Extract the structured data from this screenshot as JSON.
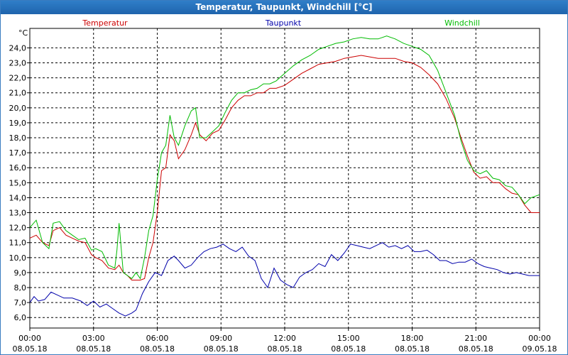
{
  "chart_data": {
    "type": "line",
    "title": "Temperatur, Taupunkt, Windchill [°C]",
    "ylabel": "°C",
    "xlabel": "",
    "ylim": [
      5.3,
      25.3
    ],
    "xlim": [
      0,
      24
    ],
    "yticks": [
      6.0,
      7.0,
      8.0,
      9.0,
      10.0,
      11.0,
      12.0,
      13.0,
      14.0,
      15.0,
      16.0,
      17.0,
      18.0,
      19.0,
      20.0,
      21.0,
      22.0,
      23.0,
      24.0
    ],
    "ytick_labels": [
      "6,0",
      "7,0",
      "8,0",
      "9,0",
      "10,0",
      "11,0",
      "12,0",
      "13,0",
      "14,0",
      "15,0",
      "16,0",
      "17,0",
      "18,0",
      "19,0",
      "20,0",
      "21,0",
      "22,0",
      "23,0",
      "24,0"
    ],
    "xticks": [
      0,
      3,
      6,
      9,
      12,
      15,
      18,
      21,
      24
    ],
    "xtick_times": [
      "00:00",
      "03:00",
      "06:00",
      "09:00",
      "12:00",
      "15:00",
      "18:00",
      "21:00",
      "00:00"
    ],
    "xtick_dates": [
      "08.05.18",
      "08.05.18",
      "08.05.18",
      "08.05.18",
      "08.05.18",
      "08.05.18",
      "08.05.18",
      "08.05.18",
      "09.05.18"
    ],
    "grid": true,
    "series": [
      {
        "name": "Temperatur",
        "color": "#cc0000",
        "x": [
          0,
          0.3,
          0.6,
          0.9,
          1.1,
          1.4,
          1.7,
          2.0,
          2.3,
          2.6,
          2.9,
          3.1,
          3.4,
          3.7,
          4.0,
          4.2,
          4.4,
          4.6,
          4.8,
          5.0,
          5.2,
          5.4,
          5.6,
          5.8,
          6.0,
          6.2,
          6.4,
          6.6,
          6.8,
          7.0,
          7.3,
          7.6,
          7.8,
          8.0,
          8.3,
          8.6,
          8.9,
          9.2,
          9.5,
          9.8,
          10.1,
          10.4,
          10.7,
          11.0,
          11.3,
          11.6,
          12.0,
          12.4,
          12.8,
          13.2,
          13.6,
          14.0,
          14.4,
          14.8,
          15.2,
          15.6,
          16.0,
          16.4,
          16.8,
          17.2,
          17.6,
          18.0,
          18.4,
          18.8,
          19.2,
          19.6,
          20.0,
          20.3,
          20.6,
          20.9,
          21.2,
          21.5,
          21.8,
          22.1,
          22.4,
          22.7,
          23.0,
          23.3,
          23.6,
          24.0
        ],
        "values": [
          11.3,
          11.5,
          11.0,
          10.8,
          11.8,
          12.0,
          11.5,
          11.3,
          11.1,
          11.0,
          10.2,
          10.0,
          9.8,
          9.3,
          9.2,
          9.5,
          9.0,
          8.8,
          8.5,
          8.5,
          8.5,
          8.6,
          10.0,
          11.0,
          13.0,
          15.8,
          16.0,
          18.2,
          17.8,
          16.6,
          17.2,
          18.2,
          19.0,
          18.2,
          17.8,
          18.3,
          18.5,
          19.2,
          20.0,
          20.5,
          20.8,
          20.8,
          21.0,
          21.0,
          21.3,
          21.3,
          21.5,
          21.9,
          22.3,
          22.6,
          22.9,
          23.0,
          23.1,
          23.3,
          23.4,
          23.5,
          23.4,
          23.3,
          23.3,
          23.3,
          23.1,
          23.0,
          22.7,
          22.2,
          21.6,
          20.6,
          19.3,
          18.0,
          16.8,
          15.7,
          15.3,
          15.4,
          15.0,
          15.0,
          14.6,
          14.3,
          14.2,
          13.5,
          13.0,
          13.0
        ]
      },
      {
        "name": "Taupunkt",
        "color": "#0000aa",
        "x": [
          0,
          0.2,
          0.4,
          0.7,
          1.0,
          1.3,
          1.6,
          2.0,
          2.4,
          2.7,
          3.0,
          3.3,
          3.6,
          3.9,
          4.2,
          4.5,
          4.8,
          5.0,
          5.3,
          5.6,
          5.9,
          6.2,
          6.5,
          6.8,
          7.0,
          7.3,
          7.6,
          7.9,
          8.2,
          8.5,
          8.8,
          9.1,
          9.4,
          9.7,
          10.0,
          10.3,
          10.6,
          10.9,
          11.2,
          11.5,
          11.8,
          12.1,
          12.4,
          12.7,
          13.0,
          13.3,
          13.6,
          13.9,
          14.2,
          14.5,
          14.8,
          15.1,
          15.4,
          15.7,
          16.0,
          16.3,
          16.6,
          16.9,
          17.2,
          17.5,
          17.8,
          18.1,
          18.4,
          18.7,
          19.0,
          19.3,
          19.6,
          19.9,
          20.2,
          20.5,
          20.8,
          21.1,
          21.4,
          21.7,
          22.0,
          22.3,
          22.6,
          22.9,
          23.2,
          23.5,
          24.0
        ],
        "values": [
          7.0,
          7.4,
          7.1,
          7.2,
          7.7,
          7.5,
          7.3,
          7.3,
          7.1,
          6.8,
          7.1,
          6.7,
          6.9,
          6.6,
          6.3,
          6.1,
          6.3,
          6.5,
          7.6,
          8.4,
          9.0,
          8.8,
          9.8,
          10.1,
          9.8,
          9.3,
          9.5,
          10.0,
          10.4,
          10.6,
          10.7,
          10.9,
          10.6,
          10.4,
          10.7,
          10.1,
          9.8,
          8.6,
          8.0,
          9.3,
          8.5,
          8.2,
          8.0,
          8.7,
          9.0,
          9.2,
          9.6,
          9.4,
          10.2,
          9.8,
          10.3,
          10.9,
          10.8,
          10.7,
          10.6,
          10.8,
          11.0,
          10.7,
          10.8,
          10.6,
          10.8,
          10.4,
          10.4,
          10.5,
          10.2,
          9.8,
          9.8,
          9.6,
          9.7,
          9.7,
          9.9,
          9.6,
          9.4,
          9.3,
          9.2,
          9.0,
          8.9,
          9.0,
          8.9,
          8.8,
          8.8
        ]
      },
      {
        "name": "Windchill",
        "color": "#00bb00",
        "x": [
          0,
          0.3,
          0.6,
          0.9,
          1.1,
          1.4,
          1.7,
          2.0,
          2.3,
          2.6,
          2.9,
          3.1,
          3.4,
          3.7,
          4.0,
          4.1,
          4.2,
          4.4,
          4.6,
          4.8,
          5.0,
          5.2,
          5.4,
          5.6,
          5.8,
          6.0,
          6.2,
          6.4,
          6.6,
          6.8,
          7.0,
          7.3,
          7.6,
          7.8,
          8.0,
          8.3,
          8.6,
          8.9,
          9.2,
          9.5,
          9.8,
          10.1,
          10.4,
          10.7,
          11.0,
          11.3,
          11.6,
          12.0,
          12.4,
          12.8,
          13.2,
          13.6,
          14.0,
          14.4,
          14.8,
          15.2,
          15.6,
          16.0,
          16.4,
          16.8,
          17.2,
          17.6,
          18.0,
          18.4,
          18.8,
          19.2,
          19.6,
          20.0,
          20.3,
          20.6,
          20.9,
          21.2,
          21.5,
          21.8,
          22.1,
          22.4,
          22.7,
          23.0,
          23.3,
          23.6,
          24.0
        ],
        "values": [
          12.0,
          12.5,
          11.0,
          10.6,
          12.3,
          12.4,
          11.8,
          11.5,
          11.2,
          11.3,
          10.5,
          10.6,
          10.4,
          9.5,
          9.3,
          10.5,
          12.3,
          9.0,
          8.8,
          8.6,
          9.0,
          8.6,
          10.0,
          11.8,
          12.8,
          15.2,
          17.0,
          17.5,
          19.5,
          18.0,
          17.5,
          18.8,
          19.8,
          20.0,
          18.0,
          18.0,
          18.4,
          18.8,
          19.7,
          20.5,
          21.0,
          21.0,
          21.2,
          21.3,
          21.6,
          21.6,
          21.8,
          22.3,
          22.8,
          23.2,
          23.5,
          23.9,
          24.1,
          24.3,
          24.4,
          24.6,
          24.7,
          24.6,
          24.6,
          24.8,
          24.6,
          24.3,
          24.1,
          23.9,
          23.5,
          22.5,
          21.0,
          19.5,
          17.8,
          16.5,
          15.8,
          15.6,
          15.8,
          15.3,
          15.2,
          14.8,
          14.7,
          14.2,
          13.6,
          14.0,
          14.2
        ]
      }
    ]
  }
}
